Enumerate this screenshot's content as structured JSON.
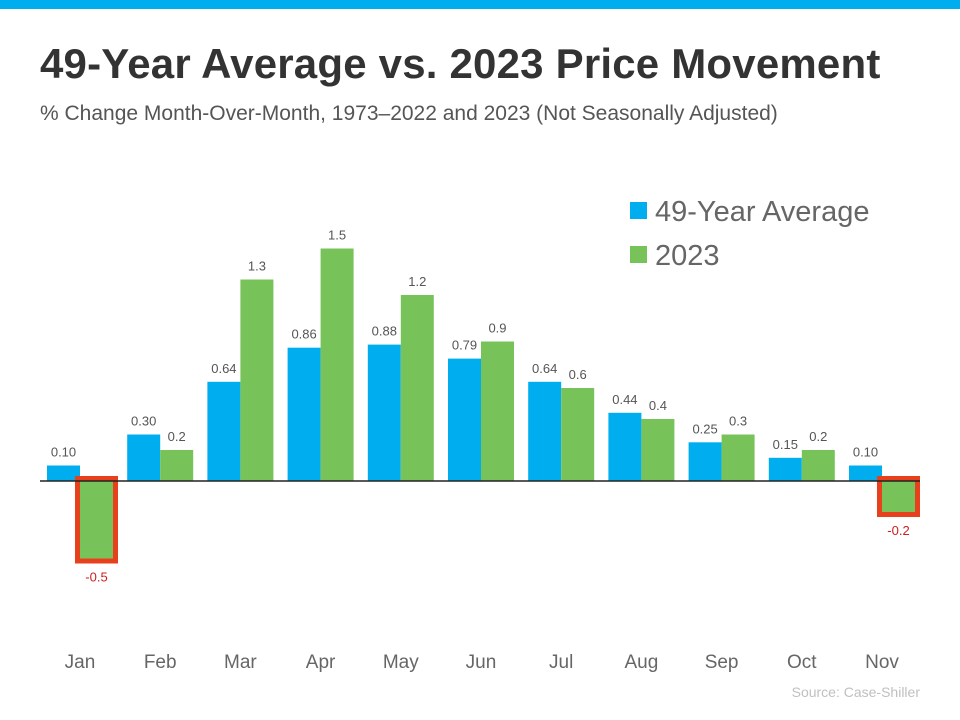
{
  "header": {
    "title": "49-Year Average vs. 2023 Price Movement",
    "subtitle": "% Change Month-Over-Month, 1973–2022  and 2023 (Not Seasonally Adjusted)"
  },
  "footer": {
    "source": "Source: Case-Shiller"
  },
  "colors": {
    "accent_bar": "#00aeef",
    "series_49yr": "#00aeef",
    "series_2023": "#77c35a",
    "highlight_box": "#e8401c",
    "negative_label": "#cc1f1f",
    "axis_label": "#666666",
    "value_label": "#555555"
  },
  "chart_data": {
    "type": "bar",
    "categories": [
      "Jan",
      "Feb",
      "Mar",
      "Apr",
      "May",
      "Jun",
      "Jul",
      "Aug",
      "Sep",
      "Oct",
      "Nov"
    ],
    "series": [
      {
        "name": "49-Year Average",
        "values": [
          0.1,
          0.3,
          0.64,
          0.86,
          0.88,
          0.79,
          0.64,
          0.44,
          0.25,
          0.15,
          0.1
        ],
        "labels": [
          "0.10",
          "0.30",
          "0.64",
          "0.86",
          "0.88",
          "0.79",
          "0.64",
          "0.44",
          "0.25",
          "0.15",
          "0.10"
        ]
      },
      {
        "name": "2023",
        "values": [
          -0.5,
          0.2,
          1.3,
          1.5,
          1.2,
          0.9,
          0.6,
          0.4,
          0.3,
          0.2,
          -0.2
        ],
        "labels": [
          "-0.5",
          "0.2",
          "1.3",
          "1.5",
          "1.2",
          "0.9",
          "0.6",
          "0.4",
          "0.3",
          "0.2",
          "-0.2"
        ]
      }
    ],
    "highlighted": [
      {
        "category": "Jan",
        "series": "2023"
      },
      {
        "category": "Nov",
        "series": "2023"
      }
    ],
    "title": "49-Year Average vs. 2023 Price Movement",
    "xlabel": "",
    "ylabel": "",
    "ylim": [
      -0.7,
      1.6
    ],
    "grid": false,
    "legend": "top-right"
  }
}
